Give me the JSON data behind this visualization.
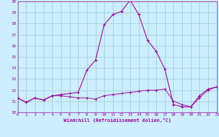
{
  "xlabel": "Windchill (Refroidissement éolien,°C)",
  "bg_color": "#cceeff",
  "grid_color": "#99cccc",
  "line_color": "#990099",
  "spine_color": "#990099",
  "x_ticks": [
    0,
    1,
    2,
    3,
    4,
    5,
    6,
    7,
    8,
    9,
    10,
    11,
    12,
    13,
    14,
    15,
    16,
    17,
    18,
    19,
    20,
    21,
    22,
    23
  ],
  "y_ticks": [
    10,
    11,
    12,
    13,
    14,
    15,
    16,
    17,
    18,
    19,
    20
  ],
  "xlim": [
    0,
    23
  ],
  "ylim": [
    10,
    20
  ],
  "line1_x": [
    0,
    1,
    2,
    3,
    4,
    5,
    6,
    7,
    8,
    9,
    10,
    11,
    12,
    13,
    14,
    15,
    16,
    17,
    18,
    19,
    20,
    21,
    22,
    23
  ],
  "line1_y": [
    11.3,
    10.9,
    11.3,
    11.1,
    11.5,
    11.6,
    11.7,
    11.8,
    13.8,
    14.7,
    17.9,
    18.8,
    19.1,
    20.1,
    18.8,
    16.5,
    15.5,
    13.9,
    10.7,
    10.5,
    10.5,
    11.5,
    12.1,
    12.3
  ],
  "line2_x": [
    0,
    1,
    2,
    3,
    4,
    5,
    6,
    7,
    8,
    9,
    10,
    11,
    12,
    13,
    14,
    15,
    16,
    17,
    18,
    19,
    20,
    21,
    22,
    23
  ],
  "line2_y": [
    11.3,
    10.9,
    11.3,
    11.1,
    11.5,
    11.5,
    11.4,
    11.3,
    11.3,
    11.2,
    11.5,
    11.6,
    11.7,
    11.8,
    11.9,
    12.0,
    12.0,
    12.1,
    11.0,
    10.7,
    10.5,
    11.3,
    12.0,
    12.3
  ]
}
